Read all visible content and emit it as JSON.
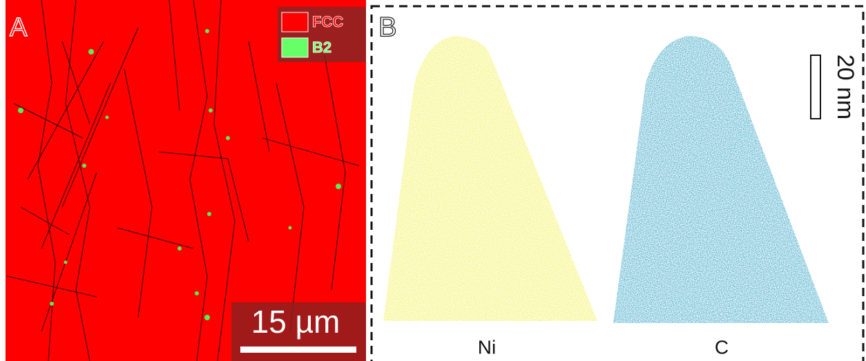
{
  "panel_a": {
    "label": "A",
    "legend": [
      {
        "label": "FCC",
        "color": "#ff0000"
      },
      {
        "label": "B2",
        "color": "#66ff66"
      }
    ],
    "scale_bar": "15 µm"
  },
  "panel_b": {
    "label": "B",
    "scale_bar": "20 nm",
    "elements": [
      {
        "label": "Ni",
        "color": "#f2f25a"
      },
      {
        "label": "C",
        "color": "#3aa6c6"
      }
    ]
  }
}
